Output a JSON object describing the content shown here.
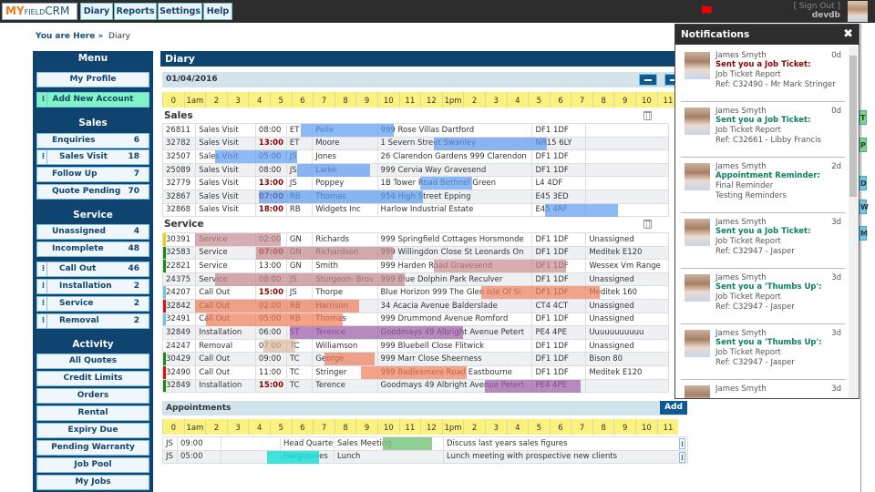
{
  "header": {
    "logo_my": "MY",
    "logo_field": "FIELD",
    "logo_crm": "CRM",
    "nav": [
      "Diary",
      "Reports",
      "Settings",
      "Help"
    ],
    "sign_out": "[ Sign Out ]",
    "username": "devdb"
  },
  "breadcrumb": {
    "label": "You are Here »",
    "current": "Diary"
  },
  "sidebar": {
    "menu_title": "Menu",
    "my_profile": "My Profile",
    "add_account": "Add New Account",
    "sales_title": "Sales",
    "sales": [
      {
        "label": "Enquiries",
        "count": "6"
      },
      {
        "label": "Sales Visit",
        "count": "18"
      },
      {
        "label": "Follow Up",
        "count": "7"
      },
      {
        "label": "Quote Pending",
        "count": "70"
      }
    ],
    "service_title": "Service",
    "service": [
      {
        "label": "Unassigned",
        "count": "4"
      },
      {
        "label": "Incomplete",
        "count": "48"
      },
      {
        "label": "Call Out",
        "count": "46"
      },
      {
        "label": "Installation",
        "count": "2"
      },
      {
        "label": "Service",
        "count": "2"
      },
      {
        "label": "Removal",
        "count": "2"
      }
    ],
    "activity_title": "Activity",
    "activity": [
      "All Quotes",
      "Credit Limits",
      "Orders",
      "Rental",
      "Expiry Due",
      "Pending Warranty",
      "Job Pool",
      "My Jobs"
    ]
  },
  "diary": {
    "title": "Diary",
    "date": "01/04/2016",
    "hours": [
      "0",
      "1am",
      "2",
      "3",
      "4",
      "5",
      "6",
      "7",
      "8",
      "9",
      "10",
      "11",
      "12",
      "1pm",
      "2",
      "3",
      "4",
      "5",
      "6",
      "7",
      "8",
      "9",
      "10",
      "11"
    ],
    "sales_title": "Sales",
    "sales_rows": [
      {
        "id": "26811",
        "type": "Sales Visit",
        "time": "08:00",
        "late": false,
        "who": "ET",
        "name": "Peile",
        "addr": "999 Rose Villas Dartford",
        "pc": "DF1 1DF",
        "x": ""
      },
      {
        "id": "32782",
        "type": "Sales Visit",
        "time": "13:00",
        "late": true,
        "who": "ET",
        "name": "Moore",
        "addr": "1 Severn Street Swanley",
        "pc": "NR15 6LY",
        "x": ""
      },
      {
        "id": "32507",
        "type": "Sales Visit",
        "time": "05:00",
        "late": false,
        "who": "JS",
        "name": "Jones",
        "addr": "26 Clarendon Gardens 999 Clarendon",
        "pc": "DF1 1DF",
        "x": ""
      },
      {
        "id": "25089",
        "type": "Sales Visit",
        "time": "08:00",
        "late": false,
        "who": "JS",
        "name": "Larke",
        "addr": "999 Cervia Way Gravesend",
        "pc": "DF1 1DF",
        "x": ""
      },
      {
        "id": "32779",
        "type": "Sales Visit",
        "time": "13:00",
        "late": true,
        "who": "JS",
        "name": "Poppey",
        "addr": "1B Tower Road Bethnel Green",
        "pc": "L4 4DF",
        "x": ""
      },
      {
        "id": "32867",
        "type": "Sales Visit",
        "time": "07:00",
        "late": true,
        "who": "RB",
        "name": "Thomas",
        "addr": "954 High Street Epping",
        "pc": "E45 3ED",
        "x": ""
      },
      {
        "id": "32868",
        "type": "Sales Visit",
        "time": "18:00",
        "late": true,
        "who": "RB",
        "name": "Widgets Inc",
        "addr": "Harlow Industrial Estate",
        "pc": "E45 4RF",
        "x": ""
      }
    ],
    "service_title": "Service",
    "service_rows": [
      {
        "id": "30391",
        "type": "Service",
        "time": "02:00",
        "late": false,
        "who": "GN",
        "name": "Richards",
        "addr": "999 Springfield Cottages Horsmonde",
        "pc": "DF1 1DF",
        "x": "Unassigned",
        "mark": "#f0d000"
      },
      {
        "id": "32583",
        "type": "Service",
        "time": "07:00",
        "late": true,
        "who": "GN",
        "name": "Richardson",
        "addr": "999 Willingdon Close St Leonards On",
        "pc": "DF1 1DF",
        "x": "Meditek E120",
        "mark": "#1a8a1a"
      },
      {
        "id": "22821",
        "type": "Service",
        "time": "13:00",
        "late": false,
        "who": "GN",
        "name": "Smith",
        "addr": "999 Harden Road Gravesend",
        "pc": "DF1 1DF",
        "x": "Wessex Vm Range",
        "mark": "#1a8a1a"
      },
      {
        "id": "24375",
        "type": "Service",
        "time": "08:00",
        "late": false,
        "who": "JS",
        "name": "Sturgeon- Brov",
        "addr": "999 Blue Dolphin Park Reculver",
        "pc": "DF1 1DF",
        "x": "Unassigned",
        "mark": ""
      },
      {
        "id": "24207",
        "type": "Call Out",
        "time": "15:00",
        "late": true,
        "who": "JS",
        "name": "Thorpe",
        "addr": "Blue Horizon 999 The Glen Isle Of Sl",
        "pc": "DF1 1DF",
        "x": "Meditek 160",
        "mark": "#6cc4e8"
      },
      {
        "id": "32842",
        "type": "Call Out",
        "time": "02:00",
        "late": false,
        "who": "RB",
        "name": "Harrison",
        "addr": "34 Acacia Avenue Balderslade",
        "pc": "CT4 4CT",
        "x": "Unassigned",
        "mark": "#e01010"
      },
      {
        "id": "32491",
        "type": "Call Out",
        "time": "05:00",
        "late": false,
        "who": "RB",
        "name": "Thomas",
        "addr": "999 Drummond Avenue Romford",
        "pc": "DF1 1DF",
        "x": "Unassigned",
        "mark": "#6cc4e8"
      },
      {
        "id": "32849",
        "type": "Installation",
        "time": "06:00",
        "late": false,
        "who": "ST",
        "name": "Terence",
        "addr": "Goodmays 49 Albright Avenue Petert",
        "pc": "PE4 4PE",
        "x": "Uuuuuuuuuuu",
        "mark": ""
      },
      {
        "id": "24247",
        "type": "Removal",
        "time": "07:00",
        "late": false,
        "who": "TC",
        "name": "Williamson",
        "addr": "999 Bluebell Close Flitwick",
        "pc": "DF1 1DF",
        "x": "Unassigned",
        "mark": ""
      },
      {
        "id": "30429",
        "type": "Call Out",
        "time": "09:00",
        "late": false,
        "who": "TC",
        "name": "George",
        "addr": "999 Marr Close Sheerness",
        "pc": "DF1 1DF",
        "x": "Bison 80",
        "mark": "#1a8a1a"
      },
      {
        "id": "32490",
        "type": "Call Out",
        "time": "11:00",
        "late": false,
        "who": "TC",
        "name": "Stringer",
        "addr": "999 Badlesmere Road Eastbourne",
        "pc": "DF1 1DF",
        "x": "Meditek E120",
        "mark": "#e01010"
      },
      {
        "id": "32849",
        "type": "Installation",
        "time": "15:00",
        "late": true,
        "who": "TC",
        "name": "Terence",
        "addr": "Goodmays 49 Albright Avenue Petert",
        "pc": "PE4 4PE",
        "x": "",
        "mark": "#1a8a1a"
      }
    ]
  },
  "appointments": {
    "title": "Appointments",
    "add_label": "Add",
    "rows": [
      {
        "who": "JS",
        "time": "09:00",
        "loc": "Head Quarters",
        "subject": "Sales Meeting",
        "notes": "Discuss last years sales figures"
      },
      {
        "who": "JS",
        "time": "05:00",
        "loc": "Hargreaves",
        "subject": "Lunch",
        "notes": "Lunch meeting with prospective new clients"
      }
    ]
  },
  "notifications": {
    "title": "Notifications",
    "close": "✖",
    "items": [
      {
        "from": "James Smyth",
        "age": "0d",
        "action": "Sent you a Job Ticket:",
        "action_color": "#8b0000",
        "line1": "Job Ticket Report",
        "line2": "Ref: C32490 - Mr Mark Stringer"
      },
      {
        "from": "James Smyth",
        "age": "0d",
        "action": "Sent you a Job Ticket:",
        "action_color": "#0a8060",
        "line1": "Job Ticket Report",
        "line2": "Ref: C32661 - Libby Francis"
      },
      {
        "from": "James Smyth",
        "age": "2d",
        "action": "Appointment Reminder:",
        "action_color": "#0a8060",
        "line1": "Final Reminder",
        "line2": "Testing Reminders"
      },
      {
        "from": "James Smyth",
        "age": "3d",
        "action": "Sent you a Job Ticket:",
        "action_color": "#0a8060",
        "line1": "Job Ticket Report",
        "line2": "Ref: C32947 - Jasper"
      },
      {
        "from": "James Smyth",
        "age": "3d",
        "action": "Sent you a 'Thumbs Up':",
        "action_color": "#0a8060",
        "line1": "Job Ticket Report",
        "line2": "Ref: C32947 - Jasper"
      },
      {
        "from": "James Smyth",
        "age": "3d",
        "action": "Sent you a 'Thumbs Up':",
        "action_color": "#0a8060",
        "line1": "Job Ticket Report",
        "line2": "Ref: C32947 - Jasper"
      },
      {
        "from": "James Smyth",
        "age": "3d",
        "action": "",
        "action_color": "#0a8060",
        "line1": "",
        "line2": ""
      }
    ]
  },
  "side_tabs": [
    {
      "label": "T",
      "color": "#7dd67d"
    },
    {
      "label": "P",
      "color": "#7dd67d"
    },
    {
      "label": "D",
      "color": "#6cc4f0"
    },
    {
      "label": "W",
      "color": "#6cc4f0"
    },
    {
      "label": "M",
      "color": "#6cc4f0"
    }
  ]
}
